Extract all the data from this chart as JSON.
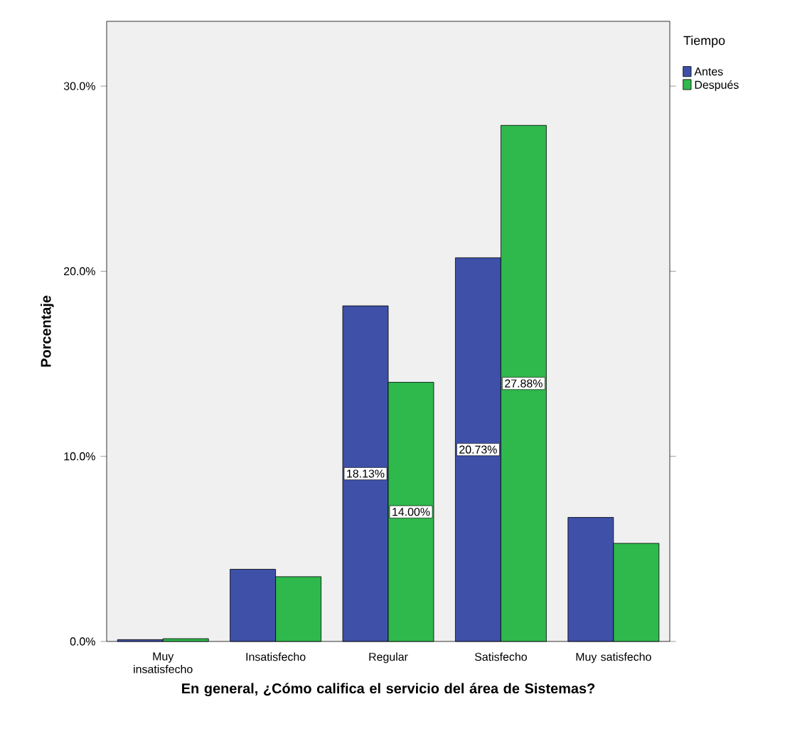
{
  "chart_data": {
    "type": "bar",
    "xlabel": "En general, ¿Cómo califica el servicio del área de Sistemas?",
    "ylabel": "Porcentaje",
    "legend_title": "Tiempo",
    "categories": [
      "Muy insatisfecho",
      "Insatisfecho",
      "Regular",
      "Satisfecho",
      "Muy satisfecho"
    ],
    "series": [
      {
        "name": "Antes",
        "color": "#3e50a8",
        "values": [
          0.1,
          3.9,
          18.13,
          20.73,
          6.7
        ],
        "value_labels": [
          null,
          null,
          "18.13%",
          "20.73%",
          null
        ]
      },
      {
        "name": "Después",
        "color": "#2fb84c",
        "values": [
          0.15,
          3.5,
          14.0,
          27.88,
          5.3
        ],
        "value_labels": [
          null,
          null,
          "14.00%",
          "27.88%",
          null
        ]
      }
    ],
    "ylim": [
      0,
      33.5
    ],
    "yticks": [
      {
        "value": 0,
        "label": "0.0%"
      },
      {
        "value": 10,
        "label": "10.0%"
      },
      {
        "value": 20,
        "label": "20.0%"
      },
      {
        "value": 30,
        "label": "30.0%"
      }
    ],
    "grid": false,
    "legend": "top right"
  }
}
